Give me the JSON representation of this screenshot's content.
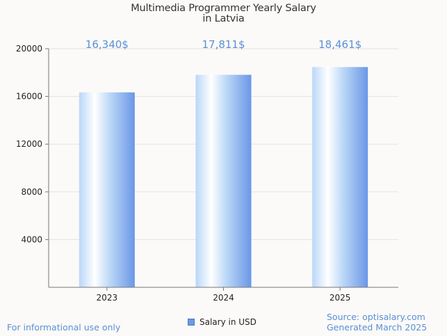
{
  "chart_data": {
    "type": "bar",
    "title": "Multimedia Programmer Yearly Salary",
    "subtitle": "in Latvia",
    "categories": [
      "2023",
      "2024",
      "2025"
    ],
    "series": [
      {
        "name": "Salary in USD",
        "values": [
          16340,
          17811,
          18461
        ]
      }
    ],
    "data_labels": [
      "16,340$",
      "17,811$",
      "18,461$"
    ],
    "yticks": [
      "4000",
      "8000",
      "12000",
      "16000",
      "20000"
    ],
    "ylim": [
      0,
      20000
    ],
    "grid": true,
    "legend_position": "bottom-center"
  },
  "colors": {
    "bar_dark": "#6a97e6",
    "bar_light": "#ffffff",
    "bar_mid": "#b9d7f8",
    "label": "#5b8fd6",
    "grid": "#e3e3e3",
    "axis": "#777777"
  },
  "footer": {
    "note": "For informational use only",
    "source": "Source: optisalary.com",
    "generated": "Generated March 2025"
  }
}
